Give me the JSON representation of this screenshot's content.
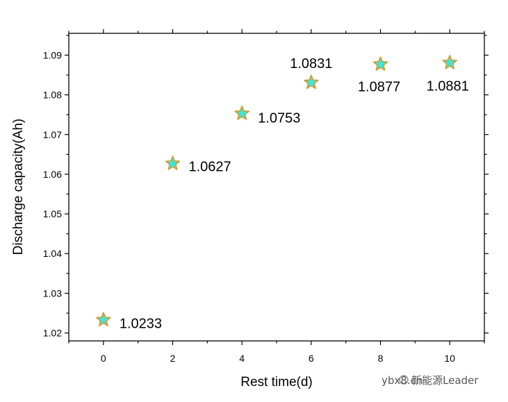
{
  "chart_data": {
    "type": "scatter",
    "title": "",
    "xlabel": "Rest time(d)",
    "ylabel": "Discharge capacity(Ah)",
    "xlim": [
      -1,
      11
    ],
    "ylim": [
      1.018,
      1.0955
    ],
    "xticks": [
      0,
      2,
      4,
      6,
      8,
      10
    ],
    "yticks": [
      1.02,
      1.03,
      1.04,
      1.05,
      1.06,
      1.07,
      1.08,
      1.09
    ],
    "grid": false,
    "legend": "none",
    "marker": "star",
    "marker_fill": "#3fe6d6",
    "marker_edge": "#d9962a",
    "series": [
      {
        "x": [
          0,
          2,
          4,
          6,
          8,
          10
        ],
        "y": [
          1.0233,
          1.0627,
          1.0753,
          1.0831,
          1.0877,
          1.0881
        ],
        "labels": [
          "1.0233",
          "1.0627",
          "1.0753",
          "1.0831",
          "1.0877",
          "1.0881"
        ]
      }
    ]
  },
  "watermark": {
    "site": "ybx8.cn",
    "brand": "新能源Leader"
  }
}
